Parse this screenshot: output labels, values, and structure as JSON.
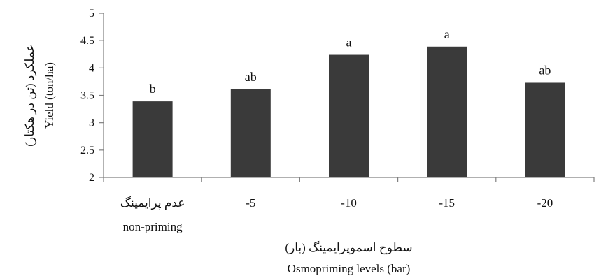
{
  "chart_data": {
    "type": "bar",
    "categories": [
      {
        "fa": "عدم پرایمینگ",
        "en": "non-priming"
      },
      {
        "fa": "",
        "en": "-5"
      },
      {
        "fa": "",
        "en": "-10"
      },
      {
        "fa": "",
        "en": "-15"
      },
      {
        "fa": "",
        "en": "-20"
      }
    ],
    "values": [
      3.39,
      3.61,
      4.24,
      4.39,
      3.73
    ],
    "bar_labels": [
      "b",
      "ab",
      "a",
      "a",
      "ab"
    ],
    "ylim": [
      2,
      5
    ],
    "yticks": [
      "2",
      "2.5",
      "3",
      "3.5",
      "4",
      "4.5",
      "5"
    ],
    "ylabel_en": "Yield (ton/ha)",
    "ylabel_fa": "عملکرد (تن در هکتار)",
    "xlabel_en": "Osmopriming levels (bar)",
    "xlabel_fa": "سطوح اسموپرایمینگ (بار)",
    "title": "",
    "grid": false,
    "colors": {
      "bar": "#3a3a3a",
      "axis": "#808080"
    }
  }
}
